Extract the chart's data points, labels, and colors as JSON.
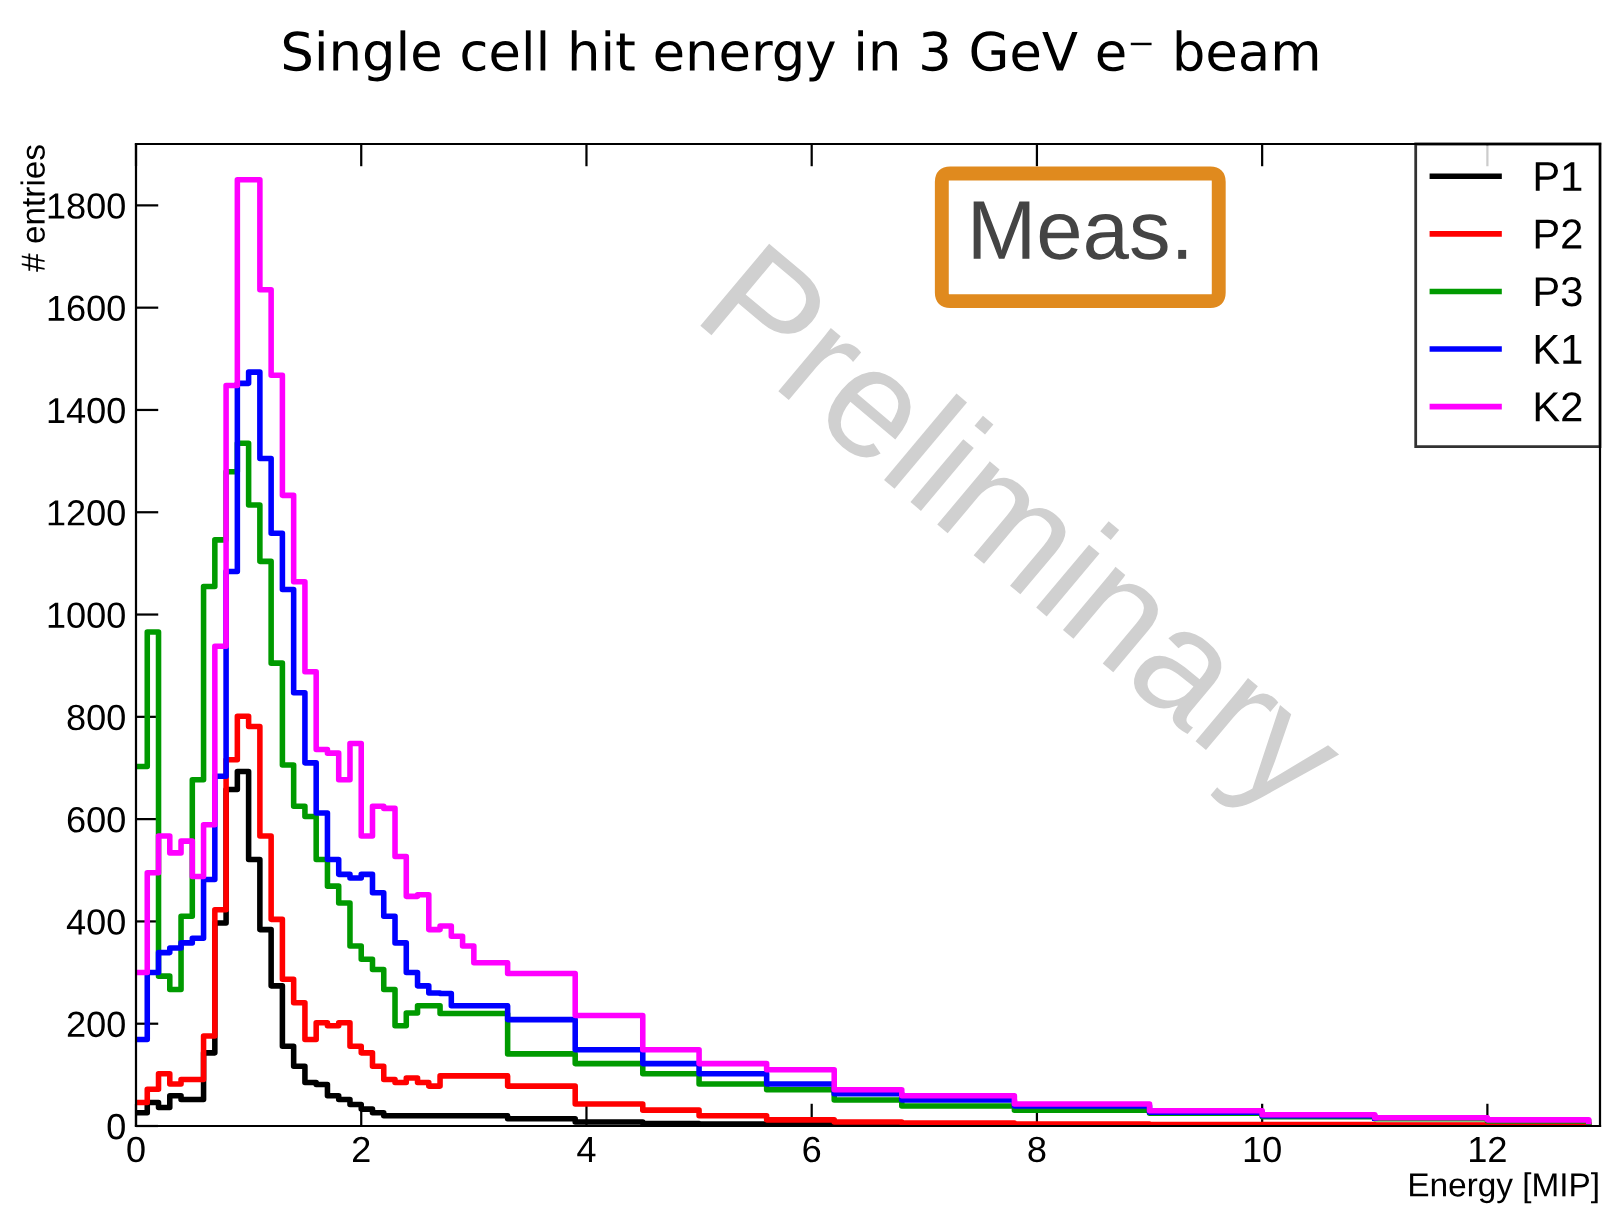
{
  "chart_data": {
    "type": "step",
    "title": "Single cell hit energy in 3 GeV e⁻ beam",
    "xlabel": "Energy [MIP]",
    "ylabel": "# entries",
    "xlim": [
      0,
      13
    ],
    "ylim": [
      0,
      1920
    ],
    "xticks": [
      0,
      2,
      4,
      6,
      8,
      10,
      12
    ],
    "yticks": [
      0,
      200,
      400,
      600,
      800,
      1000,
      1200,
      1400,
      1600,
      1800
    ],
    "legend": "top right",
    "grid": false,
    "annotations": [
      "Meas.",
      "Preliminary"
    ],
    "series": [
      {
        "name": "P1",
        "color": "#000000",
        "x": [
          0.0,
          0.1,
          0.2,
          0.3,
          0.4,
          0.5,
          0.6,
          0.7,
          0.8,
          0.9,
          1.0,
          1.1,
          1.2,
          1.3,
          1.4,
          1.5,
          1.6,
          1.7,
          1.8,
          1.9,
          2.0,
          2.1,
          2.2,
          2.7,
          3.3,
          3.9,
          4.5,
          5.0,
          5.6,
          6.2,
          6.8,
          7.8,
          9,
          10,
          11,
          12,
          12.9
        ],
        "values": [
          26,
          46,
          36,
          59,
          52,
          52,
          143,
          397,
          658,
          693,
          521,
          384,
          274,
          156,
          117,
          85,
          81,
          59,
          52,
          42,
          33,
          26,
          20,
          20,
          14,
          8,
          5,
          4,
          3,
          2,
          2,
          1,
          1,
          1,
          1,
          1,
          1
        ]
      },
      {
        "name": "P2",
        "color": "#ff0000",
        "x": [
          0.0,
          0.1,
          0.2,
          0.3,
          0.4,
          0.5,
          0.6,
          0.7,
          0.8,
          0.9,
          1.0,
          1.1,
          1.2,
          1.3,
          1.4,
          1.5,
          1.6,
          1.7,
          1.8,
          1.9,
          2.0,
          2.1,
          2.2,
          2.3,
          2.4,
          2.5,
          2.6,
          2.7,
          3.3,
          3.9,
          4.5,
          5.0,
          5.6,
          6.2,
          6.8,
          7.8,
          9,
          10,
          11,
          12,
          12.9
        ],
        "values": [
          46,
          72,
          102,
          82,
          91,
          91,
          176,
          423,
          716,
          801,
          781,
          567,
          404,
          287,
          241,
          169,
          202,
          196,
          202,
          156,
          143,
          117,
          91,
          85,
          94,
          85,
          78,
          98,
          78,
          43,
          31,
          20,
          12,
          8,
          6,
          4,
          3,
          3,
          2,
          2,
          2
        ]
      },
      {
        "name": "P3",
        "color": "#009a00",
        "x": [
          0.0,
          0.1,
          0.2,
          0.3,
          0.4,
          0.5,
          0.6,
          0.7,
          0.8,
          0.9,
          1.0,
          1.1,
          1.2,
          1.3,
          1.4,
          1.5,
          1.6,
          1.7,
          1.8,
          1.9,
          2.0,
          2.1,
          2.2,
          2.3,
          2.4,
          2.5,
          2.6,
          2.7,
          3.3,
          3.9,
          4.5,
          5.0,
          5.6,
          6.2,
          6.8,
          7.8,
          9,
          10,
          11,
          12,
          12.9
        ],
        "values": [
          703,
          966,
          293,
          267,
          410,
          677,
          1055,
          1146,
          1279,
          1335,
          1214,
          1104,
          905,
          706,
          625,
          605,
          521,
          469,
          436,
          352,
          326,
          306,
          267,
          196,
          221,
          235,
          235,
          220,
          141,
          122,
          102,
          82,
          71,
          51,
          39,
          31,
          25,
          18,
          14,
          10,
          6
        ]
      },
      {
        "name": "K1",
        "color": "#0000ff",
        "x": [
          0.0,
          0.1,
          0.2,
          0.3,
          0.4,
          0.5,
          0.6,
          0.7,
          0.8,
          0.9,
          1.0,
          1.1,
          1.2,
          1.3,
          1.4,
          1.5,
          1.6,
          1.7,
          1.8,
          1.9,
          2.0,
          2.1,
          2.2,
          2.3,
          2.4,
          2.5,
          2.6,
          2.7,
          2.8,
          3.3,
          3.9,
          4.5,
          5.0,
          5.6,
          6.2,
          6.8,
          7.8,
          9,
          10,
          11
        ],
        "values": [
          169,
          300,
          339,
          348,
          358,
          367,
          482,
          684,
          1084,
          1452,
          1474,
          1305,
          1159,
          1049,
          847,
          710,
          612,
          521,
          492,
          485,
          492,
          456,
          410,
          358,
          300,
          274,
          260,
          259,
          235,
          208,
          149,
          122,
          102,
          82,
          63,
          51,
          39,
          27,
          20,
          15
        ]
      },
      {
        "name": "K2",
        "color": "#ff00ff",
        "x": [
          0.0,
          0.1,
          0.2,
          0.3,
          0.4,
          0.5,
          0.6,
          0.7,
          0.8,
          0.9,
          1.0,
          1.1,
          1.2,
          1.3,
          1.4,
          1.5,
          1.6,
          1.7,
          1.8,
          1.9,
          2.0,
          2.1,
          2.2,
          2.3,
          2.4,
          2.5,
          2.6,
          2.7,
          2.8,
          2.9,
          3.0,
          3.3,
          3.9,
          4.5,
          5.0,
          5.6,
          6.2,
          6.8,
          7.8,
          9,
          10,
          11,
          12,
          12.9
        ],
        "values": [
          300,
          495,
          567,
          534,
          557,
          488,
          589,
          938,
          1448,
          1850,
          1850,
          1635,
          1468,
          1233,
          1064,
          888,
          736,
          729,
          677,
          748,
          567,
          625,
          621,
          527,
          449,
          452,
          384,
          391,
          371,
          352,
          319,
          298,
          216,
          149,
          122,
          110,
          71,
          59,
          43,
          30,
          22,
          16,
          12,
          9
        ]
      }
    ]
  }
}
